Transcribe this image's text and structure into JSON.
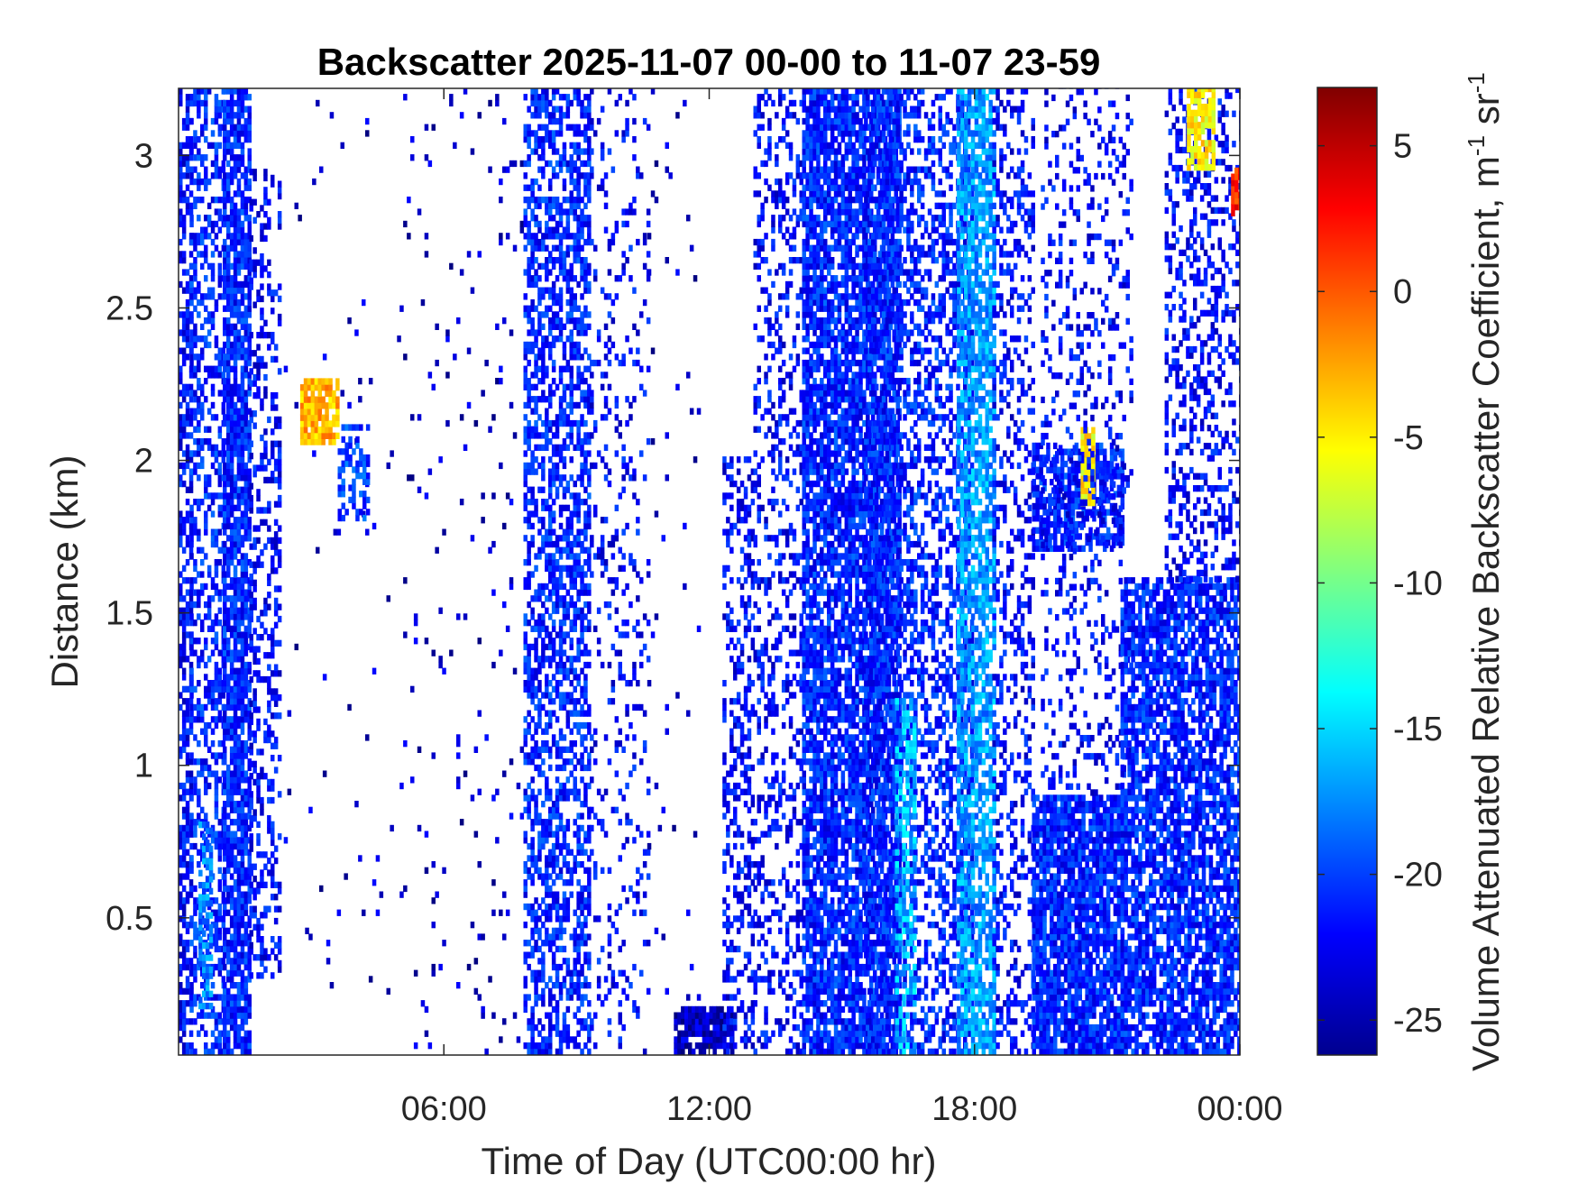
{
  "chart_data": {
    "type": "heatmap",
    "title": "Backscatter 2025-11-07 00-00 to 11-07 23-59",
    "xlabel": "Time of Day (UTC00:00 hr)",
    "ylabel": "Distance (km)",
    "x_unit": "hour",
    "xlim": [
      0,
      24
    ],
    "ylim": [
      0.05,
      3.22
    ],
    "x_ticks": [
      6,
      12,
      18,
      24
    ],
    "x_tick_labels": [
      "06:00",
      "12:00",
      "18:00",
      "00:00"
    ],
    "y_ticks": [
      0.5,
      1,
      1.5,
      2,
      2.5,
      3
    ],
    "y_tick_labels": [
      "0.5",
      "1",
      "1.5",
      "2",
      "2.5",
      "3"
    ],
    "colorbar": {
      "label_main": "Volume Attenuated Relative Backscatter Coefficient, m",
      "label_exp1": "-1",
      "label_mid": " sr",
      "label_exp2": "-1",
      "colormap": "jet",
      "clim": [
        -26.2,
        7
      ],
      "ticks": [
        5,
        0,
        -5,
        -10,
        -15,
        -20,
        -25
      ],
      "tick_labels": [
        "5",
        "0",
        "-5",
        "-10",
        "-15",
        "-20",
        "-25"
      ]
    },
    "grid": false,
    "regions": [
      {
        "t0": 0.0,
        "t1": 0.25,
        "d0": 0.05,
        "d1": 3.22,
        "v": -22,
        "fill": 0.55
      },
      {
        "t0": 0.25,
        "t1": 1.0,
        "d0": 0.05,
        "d1": 3.22,
        "v": -21,
        "fill": 0.45
      },
      {
        "t0": 0.45,
        "t1": 0.75,
        "d0": 0.2,
        "d1": 0.8,
        "v": -18,
        "fill": 0.6
      },
      {
        "t0": 1.0,
        "t1": 1.6,
        "d0": 0.05,
        "d1": 3.22,
        "v": -21,
        "fill": 0.8
      },
      {
        "t0": 1.6,
        "t1": 2.3,
        "d0": 0.3,
        "d1": 2.95,
        "v": -22,
        "fill": 0.35
      },
      {
        "t0": 2.3,
        "t1": 5.0,
        "d0": 0.05,
        "d1": 3.22,
        "v": -24,
        "fill": 0.012
      },
      {
        "t0": 2.75,
        "t1": 3.6,
        "d0": 2.05,
        "d1": 2.25,
        "v": -3,
        "fill": 0.85
      },
      {
        "t0": 3.6,
        "t1": 4.3,
        "d0": 1.8,
        "d1": 2.1,
        "v": -20,
        "fill": 0.5
      },
      {
        "t0": 5.0,
        "t1": 7.8,
        "d0": 0.05,
        "d1": 3.22,
        "v": -24,
        "fill": 0.03
      },
      {
        "t0": 7.8,
        "t1": 9.3,
        "d0": 0.05,
        "d1": 3.22,
        "v": -21,
        "fill": 0.55
      },
      {
        "t0": 9.3,
        "t1": 10.6,
        "d0": 0.05,
        "d1": 3.22,
        "v": -22,
        "fill": 0.15
      },
      {
        "t0": 10.6,
        "t1": 11.8,
        "d0": 0.05,
        "d1": 3.22,
        "v": -24,
        "fill": 0.02
      },
      {
        "t0": 11.2,
        "t1": 12.5,
        "d0": 0.05,
        "d1": 0.2,
        "v": -24,
        "fill": 0.8
      },
      {
        "t0": 12.3,
        "t1": 13.0,
        "d0": 0.05,
        "d1": 2.0,
        "v": -22,
        "fill": 0.4
      },
      {
        "t0": 13.0,
        "t1": 14.1,
        "d0": 0.05,
        "d1": 3.22,
        "v": -22,
        "fill": 0.3
      },
      {
        "t0": 14.1,
        "t1": 16.3,
        "d0": 0.05,
        "d1": 3.22,
        "v": -21,
        "fill": 0.8
      },
      {
        "t0": 15.5,
        "t1": 17.9,
        "d0": 0.05,
        "d1": 3.22,
        "v": -21,
        "fill": 0.45
      },
      {
        "t0": 16.2,
        "t1": 16.6,
        "d0": 0.05,
        "d1": 1.2,
        "v": -16,
        "fill": 0.55
      },
      {
        "t0": 17.6,
        "t1": 18.4,
        "d0": 0.05,
        "d1": 3.22,
        "v": -17,
        "fill": 0.7
      },
      {
        "t0": 18.4,
        "t1": 19.3,
        "d0": 0.05,
        "d1": 3.22,
        "v": -22,
        "fill": 0.3
      },
      {
        "t0": 19.3,
        "t1": 21.3,
        "d0": 0.05,
        "d1": 0.9,
        "v": -21,
        "fill": 0.85
      },
      {
        "t0": 19.3,
        "t1": 21.3,
        "d0": 1.7,
        "d1": 2.05,
        "v": -21,
        "fill": 0.7
      },
      {
        "t0": 20.4,
        "t1": 20.7,
        "d0": 1.85,
        "d1": 2.1,
        "v": -5,
        "fill": 0.8
      },
      {
        "t0": 19.5,
        "t1": 21.5,
        "d0": 0.9,
        "d1": 3.22,
        "v": -22,
        "fill": 0.2
      },
      {
        "t0": 21.3,
        "t1": 24.0,
        "d0": 0.05,
        "d1": 1.6,
        "v": -21,
        "fill": 0.75
      },
      {
        "t0": 22.3,
        "t1": 24.0,
        "d0": 1.6,
        "d1": 3.22,
        "v": -22,
        "fill": 0.35
      },
      {
        "t0": 22.8,
        "t1": 23.4,
        "d0": 2.95,
        "d1": 3.22,
        "v": -5,
        "fill": 0.8
      },
      {
        "t0": 23.8,
        "t1": 24.0,
        "d0": 2.8,
        "d1": 2.95,
        "v": 2,
        "fill": 0.9
      }
    ]
  }
}
